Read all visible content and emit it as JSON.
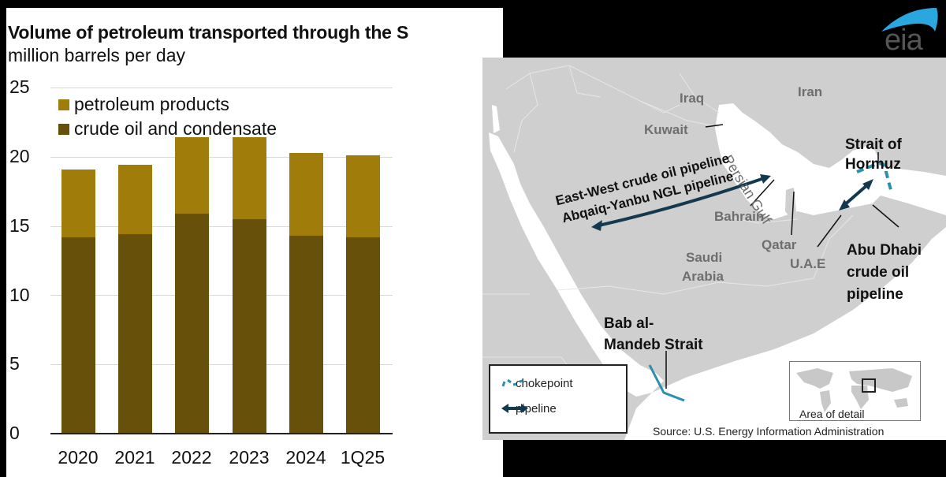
{
  "chart": {
    "title": "Volume of petroleum transported through the S",
    "subtitle": "million barrels per day",
    "y_ticks": [
      "25",
      "20",
      "15",
      "10",
      "5",
      "0"
    ],
    "legend": [
      {
        "label": "petroleum products",
        "color": "#a07d0a"
      },
      {
        "label": "crude oil and condensate",
        "color": "#67510a"
      }
    ],
    "categories": [
      "2020",
      "2021",
      "2022",
      "2023",
      "2024",
      "1Q25"
    ]
  },
  "chart_data": {
    "type": "bar",
    "stacked": true,
    "title": "Volume of petroleum transported through the S",
    "subtitle": "million barrels per day",
    "xlabel": "",
    "ylabel": "million barrels per day",
    "ylim": [
      0,
      25
    ],
    "y_ticks": [
      0,
      5,
      10,
      15,
      20,
      25
    ],
    "grid": true,
    "legend_position": "top-left inside",
    "categories": [
      "2020",
      "2021",
      "2022",
      "2023",
      "2024",
      "1Q25"
    ],
    "series": [
      {
        "name": "crude oil and condensate",
        "color": "#67510a",
        "values": [
          14.2,
          14.4,
          15.9,
          15.5,
          14.3,
          14.2
        ]
      },
      {
        "name": "petroleum products",
        "color": "#a07d0a",
        "values": [
          4.9,
          5.0,
          5.5,
          5.9,
          6.0,
          5.9
        ]
      }
    ],
    "totals": [
      19.1,
      19.4,
      21.4,
      21.4,
      20.3,
      20.1
    ]
  },
  "map": {
    "countries": {
      "iraq": "Iraq",
      "iran": "Iran",
      "kuwait": "Kuwait",
      "bahrain": "Bahrain",
      "qatar": "Qatar",
      "saudi": "Saudi\nArabia",
      "saudi_line1": "Saudi",
      "saudi_line2": "Arabia",
      "uae": "U.A.E"
    },
    "water": {
      "persian_gulf": "Persian Gulf"
    },
    "features": {
      "hormuz_line1": "Strait of",
      "hormuz_line2": "Hormuz",
      "ew_pipeline": "East-West crude oil pipeline",
      "ngl_pipeline": "Abqaiq-Yanbu NGL pipeline",
      "abu_line1": "Abu Dhabi",
      "abu_line2": "crude oil",
      "abu_line3": "pipeline",
      "bab_line1": "Bab al-",
      "bab_line2": "Mandeb Strait"
    },
    "legend": {
      "chokepoint": "chokepoint",
      "pipeline": "pipeline"
    },
    "inset_label": "Area of detail",
    "source": "Source: U.S. Energy Information Administration",
    "colors": {
      "chokepoint": "#2b8fb0",
      "pipeline": "#12394f",
      "land": "#cfcfcf",
      "water": "#ffffff"
    }
  },
  "logo": {
    "text": "eia",
    "arc_color": "#2aa7df"
  }
}
